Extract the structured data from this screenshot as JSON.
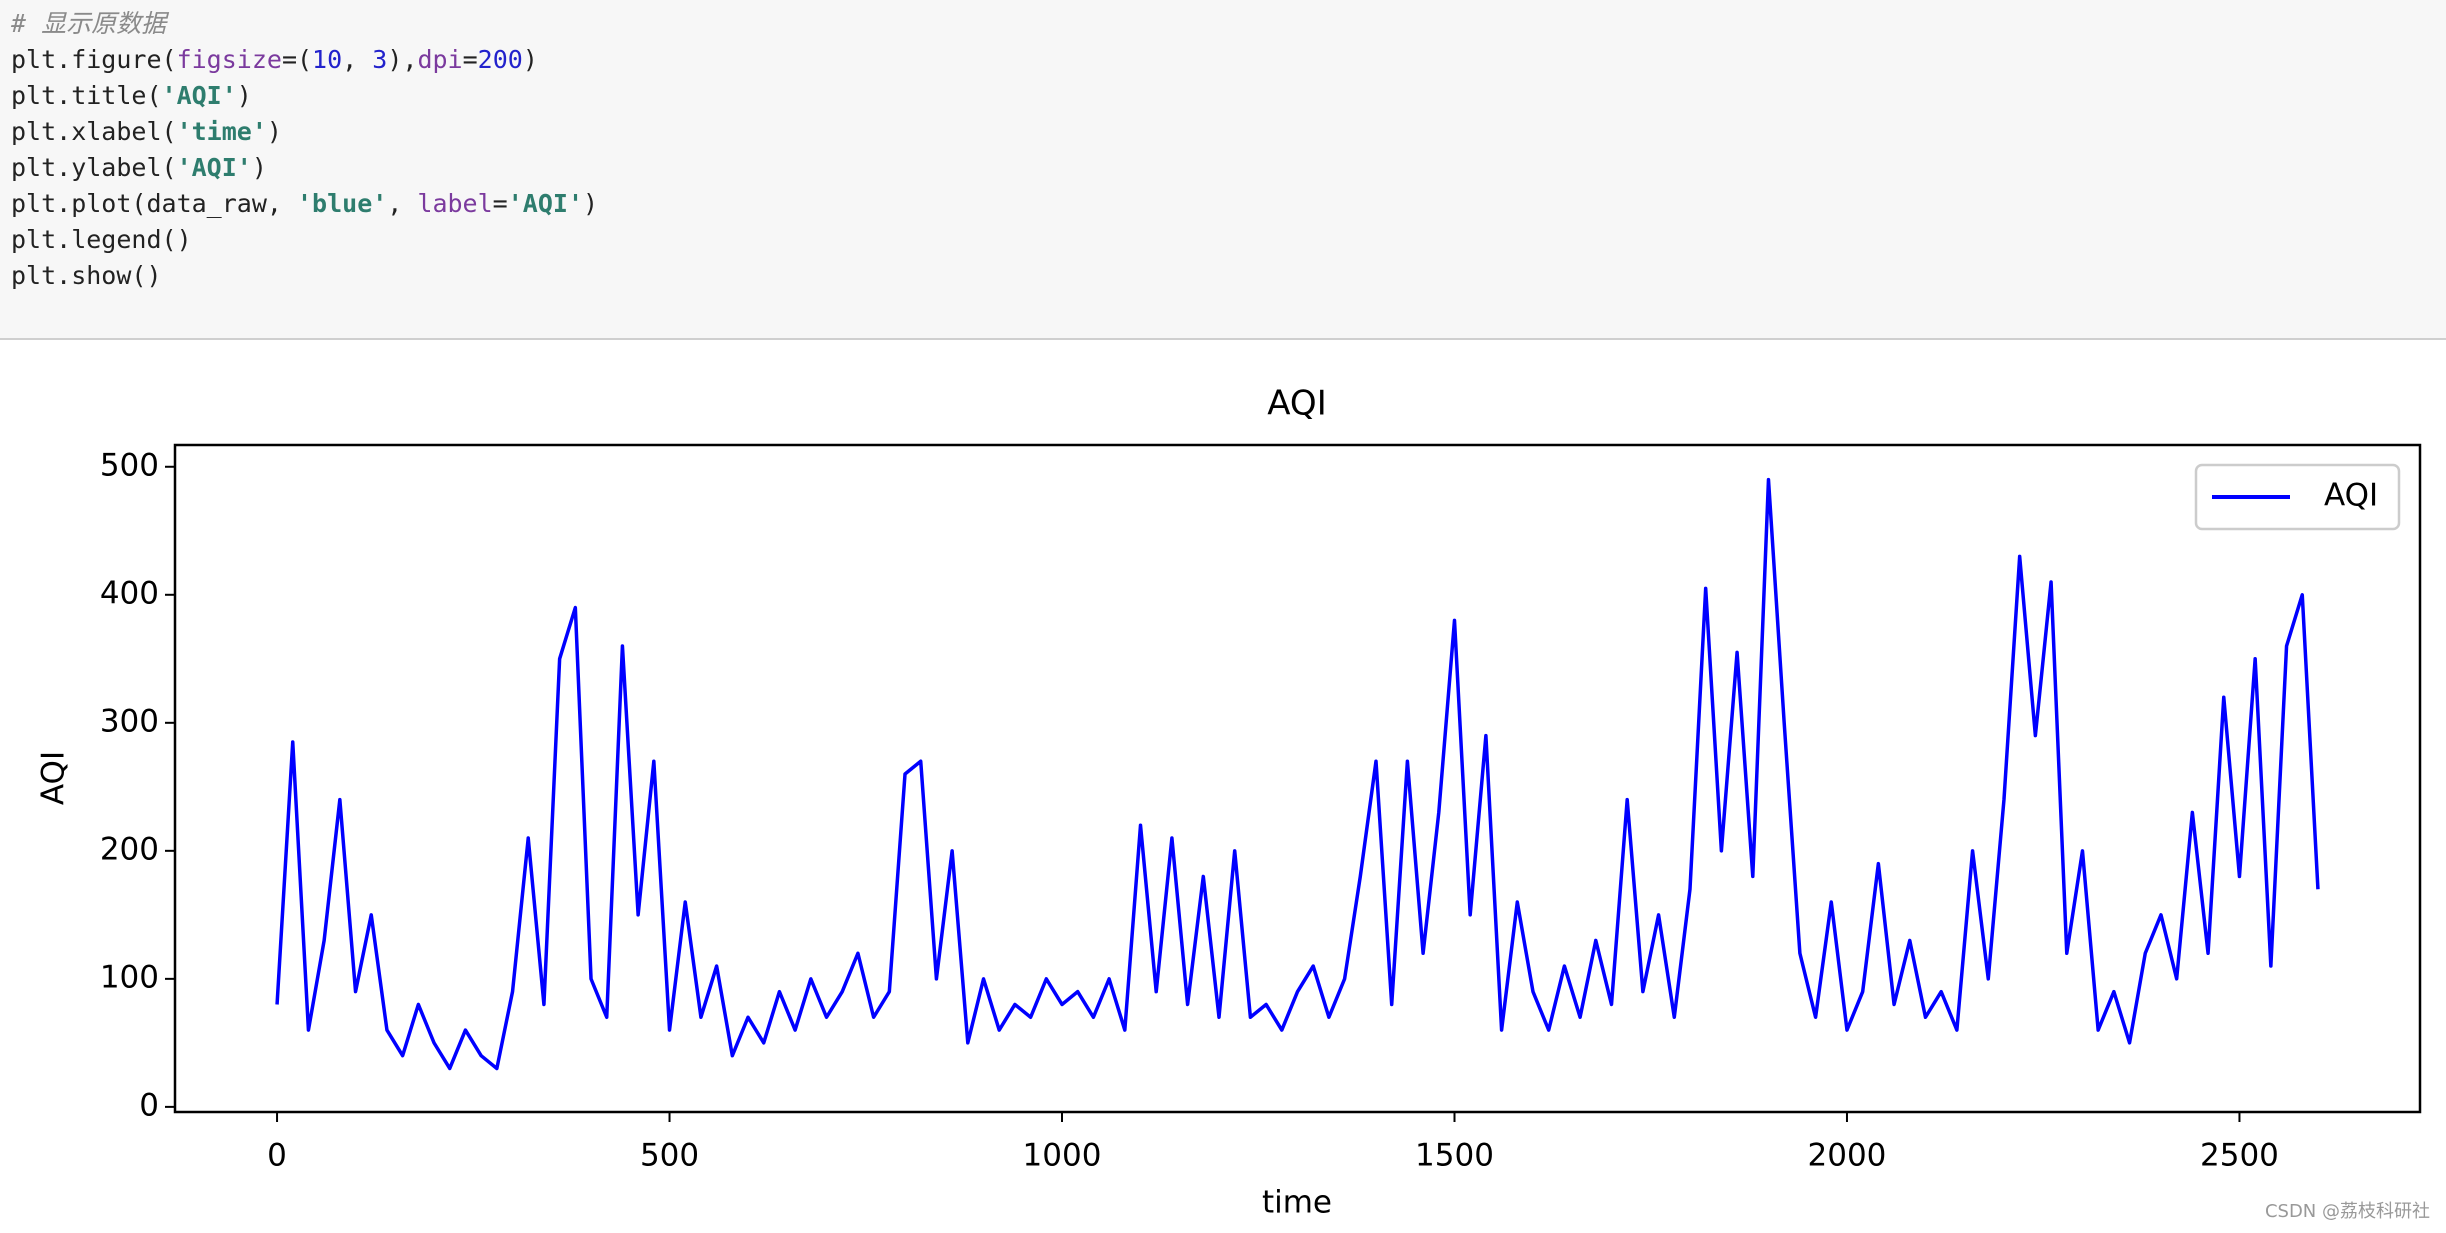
{
  "code": {
    "lines": [
      [
        {
          "text": "# 显示原数据",
          "color": "#8a8a8a",
          "italic": true
        }
      ],
      [
        {
          "text": "plt.figure(",
          "color": "#222222"
        },
        {
          "text": "figsize",
          "color": "#7b3a9e"
        },
        {
          "text": "=(",
          "color": "#222222"
        },
        {
          "text": "10",
          "color": "#2222cc"
        },
        {
          "text": ", ",
          "color": "#222222"
        },
        {
          "text": "3",
          "color": "#2222cc"
        },
        {
          "text": "),",
          "color": "#222222"
        },
        {
          "text": "dpi",
          "color": "#7b3a9e"
        },
        {
          "text": "=",
          "color": "#222222"
        },
        {
          "text": "200",
          "color": "#2222cc"
        },
        {
          "text": ")",
          "color": "#222222"
        }
      ],
      [
        {
          "text": "plt.title(",
          "color": "#222222"
        },
        {
          "text": "'AQI'",
          "color": "#2e7d6e",
          "bold": true
        },
        {
          "text": ")",
          "color": "#222222"
        }
      ],
      [
        {
          "text": "plt.xlabel(",
          "color": "#222222"
        },
        {
          "text": "'time'",
          "color": "#2e7d6e",
          "bold": true
        },
        {
          "text": ")",
          "color": "#222222"
        }
      ],
      [
        {
          "text": "plt.ylabel(",
          "color": "#222222"
        },
        {
          "text": "'AQI'",
          "color": "#2e7d6e",
          "bold": true
        },
        {
          "text": ")",
          "color": "#222222"
        }
      ],
      [
        {
          "text": "plt.plot(data_raw, ",
          "color": "#222222"
        },
        {
          "text": "'blue'",
          "color": "#2e7d6e",
          "bold": true
        },
        {
          "text": ", ",
          "color": "#222222"
        },
        {
          "text": "label",
          "color": "#7b3a9e"
        },
        {
          "text": "=",
          "color": "#222222"
        },
        {
          "text": "'AQI'",
          "color": "#2e7d6e",
          "bold": true
        },
        {
          "text": ")",
          "color": "#222222"
        }
      ],
      [
        {
          "text": "plt.legend()",
          "color": "#222222"
        }
      ],
      [
        {
          "text": "plt.show()",
          "color": "#222222"
        }
      ]
    ]
  },
  "chart_data": {
    "type": "line",
    "title": "AQI",
    "xlabel": "time",
    "ylabel": "AQI",
    "x": [
      0,
      20,
      40,
      60,
      80,
      100,
      120,
      140,
      160,
      180,
      200,
      220,
      240,
      260,
      280,
      300,
      320,
      340,
      360,
      380,
      400,
      420,
      440,
      460,
      480,
      500,
      520,
      540,
      560,
      580,
      600,
      620,
      640,
      660,
      680,
      700,
      720,
      740,
      760,
      780,
      800,
      820,
      840,
      860,
      880,
      900,
      920,
      940,
      960,
      980,
      1000,
      1020,
      1040,
      1060,
      1080,
      1100,
      1120,
      1140,
      1160,
      1180,
      1200,
      1220,
      1240,
      1260,
      1280,
      1300,
      1320,
      1340,
      1360,
      1380,
      1400,
      1420,
      1440,
      1460,
      1480,
      1500,
      1520,
      1540,
      1560,
      1580,
      1600,
      1620,
      1640,
      1660,
      1680,
      1700,
      1720,
      1740,
      1760,
      1780,
      1800,
      1820,
      1840,
      1860,
      1880,
      1900,
      1920,
      1940,
      1960,
      1980,
      2000,
      2020,
      2040,
      2060,
      2080,
      2100,
      2120,
      2140,
      2160,
      2180,
      2200,
      2220,
      2240,
      2260,
      2280,
      2300,
      2320,
      2340,
      2360,
      2380,
      2400,
      2420,
      2440,
      2460,
      2480,
      2500,
      2520,
      2540,
      2560,
      2580,
      2600
    ],
    "series": [
      {
        "name": "AQI",
        "color": "#0000ff",
        "values": [
          80,
          285,
          60,
          130,
          240,
          90,
          150,
          60,
          40,
          80,
          50,
          30,
          60,
          40,
          30,
          90,
          210,
          80,
          350,
          390,
          100,
          70,
          360,
          150,
          270,
          60,
          160,
          70,
          110,
          40,
          70,
          50,
          90,
          60,
          100,
          70,
          90,
          120,
          70,
          90,
          260,
          270,
          100,
          200,
          50,
          100,
          60,
          80,
          70,
          100,
          80,
          90,
          70,
          100,
          60,
          220,
          90,
          210,
          80,
          180,
          70,
          200,
          70,
          80,
          60,
          90,
          110,
          70,
          100,
          180,
          270,
          80,
          270,
          120,
          230,
          380,
          150,
          290,
          60,
          160,
          90,
          60,
          110,
          70,
          130,
          80,
          240,
          90,
          150,
          70,
          170,
          405,
          200,
          355,
          180,
          490,
          300,
          120,
          70,
          160,
          60,
          90,
          190,
          80,
          130,
          70,
          90,
          60,
          200,
          100,
          240,
          430,
          290,
          410,
          120,
          200,
          60,
          90,
          50,
          120,
          150,
          100,
          230,
          120,
          320,
          180,
          350,
          110,
          360,
          400,
          170
        ]
      }
    ],
    "xlim": [
      -130,
      2730
    ],
    "ylim": [
      -4,
      517
    ],
    "xticks": [
      0,
      500,
      1000,
      1500,
      2000,
      2500
    ],
    "yticks": [
      0,
      100,
      200,
      300,
      400,
      500
    ],
    "legend": "upper right"
  },
  "watermark": "CSDN @荔枝科研社"
}
